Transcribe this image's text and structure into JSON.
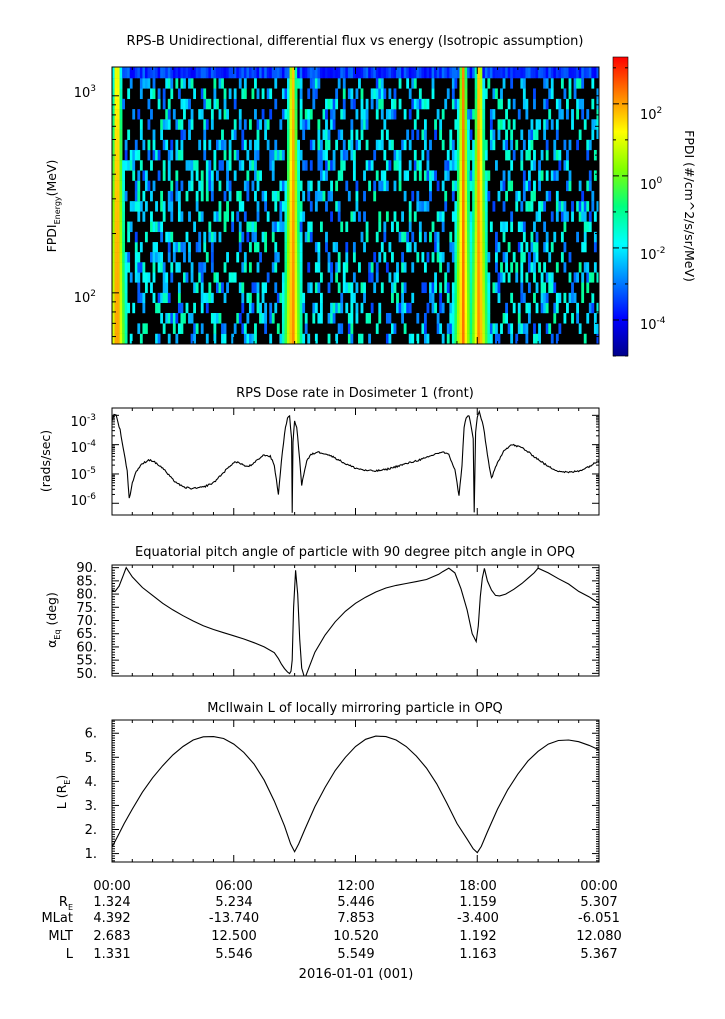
{
  "colors": {
    "background": "#ffffff",
    "axis": "#000000",
    "trace": "#000000",
    "spectrogram_fill": "#000000",
    "colorbar_stops": [
      "#00008a",
      "#0000ff",
      "#0080ff",
      "#00ffff",
      "#00ff80",
      "#80ff00",
      "#ffff00",
      "#ff8000",
      "#ff0000"
    ]
  },
  "chart_data": [
    {
      "type": "heatmap",
      "title": "RPS-B  Unidirectional, differential flux vs energy (Isotropic assumption)",
      "ylabel_main": "FPDI",
      "ylabel_sub": "Energy",
      "ylabel_units": "(MeV)",
      "yscale": "log",
      "ylim": [
        55,
        1400
      ],
      "y_tick_labels": [
        {
          "base": "10",
          "exp": "2",
          "value": 100
        },
        {
          "base": "10",
          "exp": "3",
          "value": 1000
        }
      ],
      "xlim_hours": [
        0,
        24
      ],
      "channel_edges_mev": [
        55,
        62,
        70,
        79,
        89,
        100,
        113,
        127,
        143,
        161,
        181,
        204,
        230,
        259,
        292,
        329,
        371,
        418,
        471,
        531,
        598,
        674,
        760,
        856,
        965,
        1090,
        1230,
        1400
      ],
      "radiation_belt_crossings_hours": [
        0.25,
        8.9,
        17.3,
        18.1
      ],
      "colorbar": {
        "label": "FPDI (#/cm^2/s/sr/MeV)",
        "scale": "log",
        "range_log10": [
          -5,
          3.3
        ],
        "tick_labels": [
          {
            "base": "10",
            "exp": "2",
            "log": 2
          },
          {
            "base": "10",
            "exp": "0",
            "log": 0
          },
          {
            "base": "10",
            "exp": "-2",
            "log": -2
          },
          {
            "base": "10",
            "exp": "-4",
            "log": -4
          }
        ]
      }
    },
    {
      "type": "line",
      "title": "RPS  Dose rate in Dosimeter 1 (front)",
      "ylabel": "(rads/sec)",
      "yscale": "log",
      "ylim_log10": [
        -6.4,
        -2.75
      ],
      "y_tick_labels": [
        {
          "base": "10",
          "exp": "-3",
          "log": -3
        },
        {
          "base": "10",
          "exp": "-4",
          "log": -4
        },
        {
          "base": "10",
          "exp": "-5",
          "log": -5
        },
        {
          "base": "10",
          "exp": "-6",
          "log": -6
        }
      ],
      "x_hours": [
        0,
        0.1,
        0.2,
        0.4,
        0.6,
        0.75,
        0.85,
        1.0,
        1.2,
        1.5,
        1.8,
        2.0,
        2.5,
        3.0,
        3.5,
        4.0,
        4.5,
        5.0,
        5.5,
        6.0,
        6.3,
        6.6,
        6.9,
        7.2,
        7.5,
        7.8,
        8.0,
        8.2,
        8.4,
        8.55,
        8.65,
        8.75,
        8.85,
        8.88,
        8.92,
        9.0,
        9.1,
        9.25,
        9.35,
        9.45,
        9.6,
        9.8,
        10.1,
        10.5,
        11.0,
        11.5,
        12.0,
        12.5,
        13.0,
        13.5,
        14.0,
        14.5,
        15.0,
        15.5,
        16.0,
        16.3,
        16.6,
        16.9,
        17.1,
        17.25,
        17.35,
        17.45,
        17.6,
        17.8,
        17.85,
        17.92,
        18.0,
        18.1,
        18.3,
        18.5,
        18.7,
        18.95,
        19.3,
        19.7,
        20.2,
        20.7,
        21.0,
        21.5,
        22.0,
        22.5,
        23.0,
        23.5,
        24.0
      ],
      "y_log10": [
        -3.2,
        -2.95,
        -3.0,
        -3.5,
        -4.3,
        -4.9,
        -5.85,
        -5.3,
        -4.9,
        -4.65,
        -4.52,
        -4.55,
        -4.8,
        -5.2,
        -5.45,
        -5.5,
        -5.45,
        -5.3,
        -4.95,
        -4.6,
        -4.62,
        -4.75,
        -4.7,
        -4.5,
        -4.35,
        -4.4,
        -4.7,
        -5.7,
        -4.2,
        -3.4,
        -3.1,
        -3.05,
        -3.8,
        -6.3,
        -3.9,
        -3.2,
        -3.4,
        -4.5,
        -5.4,
        -5.0,
        -4.55,
        -4.35,
        -4.25,
        -4.3,
        -4.45,
        -4.65,
        -4.8,
        -4.88,
        -4.9,
        -4.85,
        -4.75,
        -4.65,
        -4.55,
        -4.45,
        -4.3,
        -4.25,
        -4.35,
        -4.85,
        -5.75,
        -4.7,
        -3.4,
        -3.1,
        -3.0,
        -3.8,
        -6.3,
        -3.6,
        -3.05,
        -2.9,
        -3.35,
        -4.35,
        -5.15,
        -4.7,
        -4.2,
        -4.0,
        -4.1,
        -4.35,
        -4.5,
        -4.75,
        -4.9,
        -4.95,
        -4.9,
        -4.75,
        -4.55
      ]
    },
    {
      "type": "line",
      "title": "Equatorial pitch angle of particle with 90 degree pitch angle in OPQ",
      "ylabel": "α",
      "ylabel_sub": "Eq",
      "ylabel_units": " (deg)",
      "ylim": [
        49,
        91
      ],
      "y_tick_labels": [
        "90.",
        "85.",
        "80.",
        "75.",
        "70.",
        "65.",
        "60.",
        "55.",
        "50."
      ],
      "x_hours": [
        0,
        0.15,
        0.35,
        0.55,
        0.7,
        1.0,
        1.5,
        2.0,
        2.5,
        3.0,
        3.5,
        4.0,
        4.5,
        5.0,
        5.5,
        6.0,
        6.5,
        7.0,
        7.5,
        8.0,
        8.2,
        8.35,
        8.5,
        8.65,
        8.75,
        8.82,
        8.88,
        8.9,
        8.95,
        9.05,
        9.15,
        9.25,
        9.35,
        9.5,
        9.75,
        10.0,
        10.5,
        11.0,
        11.5,
        12.0,
        12.5,
        13.0,
        13.5,
        14.0,
        14.5,
        15.0,
        15.5,
        15.8,
        16.1,
        16.3,
        16.6,
        16.9,
        17.2,
        17.5,
        17.75,
        17.95,
        18.05,
        18.15,
        18.25,
        18.35,
        18.5,
        18.7,
        18.9,
        19.1,
        19.4,
        19.8,
        20.2,
        20.5,
        20.8,
        21.0,
        21.5,
        22.0,
        22.5,
        23.0,
        23.5,
        24.0
      ],
      "y_values": [
        81.5,
        81.0,
        83.0,
        87.0,
        90.0,
        86.5,
        82.5,
        79.5,
        76.5,
        74.0,
        71.8,
        69.8,
        68.0,
        66.6,
        65.4,
        64.2,
        63.0,
        61.6,
        60.0,
        57.8,
        55.6,
        53.5,
        51.8,
        50.5,
        49.9,
        50.8,
        55.0,
        61.0,
        75.0,
        89.0,
        80.0,
        63.0,
        52.0,
        48.0,
        53.0,
        58.0,
        64.5,
        69.5,
        73.5,
        76.5,
        78.8,
        80.8,
        82.3,
        83.3,
        84.0,
        84.7,
        85.5,
        86.5,
        87.5,
        88.5,
        89.8,
        88.0,
        82.0,
        74.0,
        65.0,
        62.0,
        68.0,
        79.0,
        86.0,
        89.7,
        85.0,
        81.5,
        79.5,
        79.3,
        80.0,
        81.8,
        84.0,
        86.0,
        88.0,
        89.8,
        88.0,
        85.8,
        83.8,
        81.0,
        79.0,
        76.5
      ]
    },
    {
      "type": "line",
      "title": "McIlwain L of locally mirroring particle in OPQ",
      "ylabel": "L (R",
      "ylabel_sub": "E",
      "ylabel_end": ")",
      "ylim": [
        0.65,
        6.55
      ],
      "y_tick_labels": [
        "6.",
        "5.",
        "4.",
        "3.",
        "2.",
        "1."
      ],
      "x_hours": [
        0,
        0.3,
        0.6,
        1.0,
        1.5,
        2.0,
        2.5,
        3.0,
        3.5,
        4.0,
        4.5,
        5.0,
        5.5,
        6.0,
        6.5,
        7.0,
        7.5,
        8.0,
        8.5,
        8.8,
        9.0,
        9.2,
        9.5,
        10.0,
        10.5,
        11.0,
        11.5,
        12.0,
        12.5,
        13.0,
        13.5,
        14.0,
        14.5,
        15.0,
        15.5,
        16.0,
        16.5,
        17.0,
        17.5,
        17.8,
        18.0,
        18.2,
        18.5,
        19.0,
        19.5,
        20.0,
        20.5,
        21.0,
        21.5,
        22.0,
        22.5,
        23.0,
        23.5,
        24.0
      ],
      "y_values": [
        1.27,
        1.75,
        2.25,
        2.85,
        3.55,
        4.15,
        4.65,
        5.1,
        5.45,
        5.72,
        5.85,
        5.86,
        5.78,
        5.55,
        5.2,
        4.72,
        4.05,
        3.18,
        2.15,
        1.4,
        1.08,
        1.4,
        2.0,
        2.95,
        3.75,
        4.45,
        5.0,
        5.45,
        5.75,
        5.88,
        5.86,
        5.72,
        5.45,
        5.05,
        4.55,
        3.9,
        3.1,
        2.25,
        1.6,
        1.2,
        1.04,
        1.3,
        1.9,
        2.85,
        3.65,
        4.3,
        4.85,
        5.25,
        5.55,
        5.7,
        5.72,
        5.65,
        5.5,
        5.31
      ]
    }
  ],
  "x_axis": {
    "ticks": [
      {
        "time": "00:00",
        "re": "1.324",
        "mlat": "4.392",
        "mlt": "2.683",
        "l": "1.331"
      },
      {
        "time": "06:00",
        "re": "5.234",
        "mlat": "-13.740",
        "mlt": "12.500",
        "l": "5.546"
      },
      {
        "time": "12:00",
        "re": "5.446",
        "mlat": "7.853",
        "mlt": "10.520",
        "l": "5.549"
      },
      {
        "time": "18:00",
        "re": "1.159",
        "mlat": "-3.400",
        "mlt": "1.192",
        "l": "1.163"
      },
      {
        "time": "00:00",
        "re": "5.307",
        "mlat": "-6.051",
        "mlt": "12.080",
        "l": "5.367"
      }
    ],
    "row_labels": {
      "re_base": "R",
      "re_sub": "E",
      "mlat": "MLat",
      "mlt": "MLT",
      "l": "L"
    },
    "date_label": "2016-01-01 (001)"
  }
}
